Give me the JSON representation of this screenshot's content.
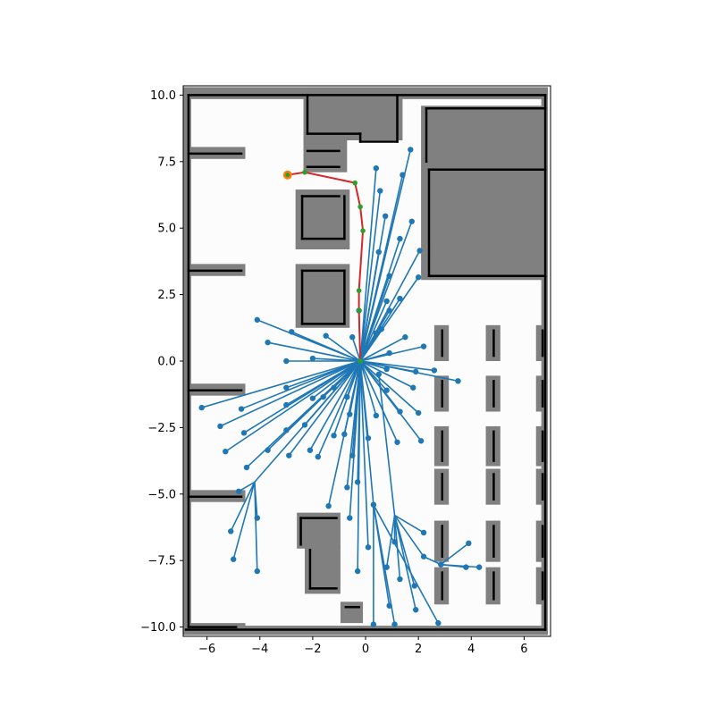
{
  "chart_data": {
    "type": "scatter",
    "title": "",
    "xlabel": "",
    "ylabel": "",
    "xlim": [
      -6.9,
      7.0
    ],
    "ylim": [
      -10.35,
      10.35
    ],
    "grid": false,
    "x_ticks": [
      -6,
      -4,
      -2,
      0,
      2,
      4,
      6
    ],
    "y_ticks": [
      -10.0,
      -7.5,
      -5.0,
      -2.5,
      0.0,
      2.5,
      5.0,
      7.5,
      10.0
    ],
    "x_tick_labels": [
      "−6",
      "−4",
      "−2",
      "0",
      "2",
      "4",
      "6"
    ],
    "y_tick_labels": [
      "−10.0",
      "−7.5",
      "−5.0",
      "−2.5",
      "0.0",
      "2.5",
      "5.0",
      "7.5",
      "10.0"
    ],
    "colors": {
      "tree": "#1f77b4",
      "path": "#d62728",
      "path_nodes": "#2ca02c",
      "start": "#ff7f0e",
      "occupied": "#000000",
      "inflated": "#808080",
      "free": "#fcfcfc"
    },
    "map": {
      "inflated_obstacles": [
        [
          -6.9,
          -6.6,
          -10.3,
          10.3
        ],
        [
          -6.9,
          6.9,
          9.85,
          10.3
        ],
        [
          -6.9,
          6.9,
          -10.3,
          -9.95
        ],
        [
          6.65,
          6.9,
          -10.3,
          10.3
        ],
        [
          -6.9,
          -4.55,
          7.6,
          8.05
        ],
        [
          -6.9,
          -4.55,
          3.2,
          3.65
        ],
        [
          -6.9,
          -4.55,
          -1.3,
          -0.85
        ],
        [
          -6.9,
          -4.55,
          -5.3,
          -4.85
        ],
        [
          -6.9,
          -4.55,
          -10.3,
          -9.85
        ],
        [
          -2.35,
          1.4,
          8.3,
          10.3
        ],
        [
          -2.35,
          -0.7,
          7.1,
          8.45
        ],
        [
          -2.65,
          -0.6,
          4.2,
          6.45
        ],
        [
          -2.65,
          -0.6,
          1.25,
          3.65
        ],
        [
          2.1,
          6.9,
          3.05,
          9.6
        ],
        [
          -2.6,
          -0.95,
          -7.05,
          -5.7
        ],
        [
          -2.3,
          -0.95,
          -8.75,
          -6.9
        ],
        [
          -0.95,
          -0.1,
          -9.85,
          -9.05
        ],
        [
          2.6,
          3.15,
          0.0,
          1.35
        ],
        [
          2.6,
          3.15,
          -1.9,
          -0.55
        ],
        [
          2.6,
          3.15,
          -3.95,
          -2.45
        ],
        [
          2.6,
          3.15,
          -5.4,
          -4.05
        ],
        [
          2.6,
          3.15,
          -7.55,
          -6.0
        ],
        [
          2.6,
          3.15,
          -9.15,
          -7.75
        ],
        [
          4.55,
          5.1,
          0.0,
          1.35
        ],
        [
          4.55,
          5.1,
          -1.9,
          -0.55
        ],
        [
          4.55,
          5.1,
          -3.95,
          -2.45
        ],
        [
          4.55,
          5.1,
          -5.4,
          -4.05
        ],
        [
          4.55,
          5.1,
          -7.55,
          -6.0
        ],
        [
          4.55,
          5.1,
          -9.15,
          -7.75
        ],
        [
          6.45,
          6.9,
          0.0,
          1.35
        ],
        [
          6.45,
          6.9,
          -1.9,
          -0.55
        ],
        [
          6.45,
          6.9,
          -3.95,
          -2.45
        ],
        [
          6.45,
          6.9,
          -5.4,
          -4.05
        ],
        [
          6.45,
          6.9,
          -7.55,
          -6.0
        ],
        [
          6.45,
          6.9,
          -9.15,
          -7.75
        ]
      ],
      "occupied_lines": [
        [
          -6.7,
          10.0,
          -6.7,
          -9.95
        ],
        [
          -6.7,
          10.0,
          6.8,
          10.0
        ],
        [
          6.8,
          10.0,
          6.8,
          -10.1
        ],
        [
          -6.8,
          -10.1,
          6.8,
          -10.1
        ],
        [
          -6.7,
          7.8,
          -4.7,
          7.8
        ],
        [
          -6.7,
          3.4,
          -4.7,
          3.4
        ],
        [
          -6.7,
          -1.1,
          -4.7,
          -1.1
        ],
        [
          -6.7,
          -5.1,
          -4.7,
          -5.1
        ],
        [
          -6.7,
          -10.0,
          -4.9,
          -10.0
        ],
        [
          -2.2,
          10.0,
          -2.2,
          8.55
        ],
        [
          -2.2,
          8.55,
          -0.2,
          8.55
        ],
        [
          -0.2,
          8.55,
          -0.2,
          8.25
        ],
        [
          -0.2,
          8.25,
          1.2,
          8.25
        ],
        [
          1.2,
          8.25,
          1.2,
          10.0
        ],
        [
          -2.2,
          7.9,
          -1.0,
          7.9
        ],
        [
          -2.2,
          7.3,
          -1.0,
          7.3
        ],
        [
          -2.4,
          6.2,
          -1.0,
          6.2
        ],
        [
          -2.4,
          6.2,
          -2.4,
          4.6
        ],
        [
          -2.4,
          4.6,
          -0.8,
          4.6
        ],
        [
          -0.8,
          4.6,
          -0.8,
          6.2
        ],
        [
          -2.4,
          3.4,
          -0.8,
          3.4
        ],
        [
          -2.4,
          3.4,
          -2.4,
          1.4
        ],
        [
          -2.4,
          1.4,
          -0.8,
          1.4
        ],
        [
          -0.8,
          1.4,
          -0.8,
          3.4
        ],
        [
          2.3,
          9.5,
          6.8,
          9.5
        ],
        [
          2.3,
          9.5,
          2.3,
          7.5
        ],
        [
          2.4,
          7.2,
          2.4,
          3.2
        ],
        [
          2.4,
          3.2,
          6.8,
          3.2
        ],
        [
          2.4,
          7.2,
          6.8,
          7.2
        ],
        [
          -2.45,
          -5.9,
          -1.1,
          -5.9
        ],
        [
          -2.45,
          -5.9,
          -2.45,
          -6.9
        ],
        [
          -2.1,
          -7.1,
          -2.1,
          -8.55
        ],
        [
          -2.1,
          -8.55,
          -1.1,
          -8.55
        ],
        [
          -0.75,
          -9.25,
          -0.25,
          -9.25
        ],
        [
          2.9,
          1.15,
          2.9,
          0.2
        ],
        [
          2.9,
          -0.75,
          2.9,
          -1.7
        ],
        [
          2.9,
          -2.65,
          2.9,
          -3.75
        ],
        [
          2.9,
          -4.25,
          2.9,
          -5.2
        ],
        [
          2.9,
          -6.2,
          2.9,
          -7.35
        ],
        [
          2.9,
          -7.95,
          2.9,
          -8.95
        ],
        [
          4.85,
          1.15,
          4.85,
          0.2
        ],
        [
          4.85,
          -0.75,
          4.85,
          -1.7
        ],
        [
          4.85,
          -2.65,
          4.85,
          -3.75
        ],
        [
          4.85,
          -4.25,
          4.85,
          -5.2
        ],
        [
          4.85,
          -6.2,
          4.85,
          -7.35
        ],
        [
          4.85,
          -7.95,
          4.85,
          -8.95
        ],
        [
          6.7,
          1.15,
          6.7,
          0.2
        ],
        [
          6.7,
          -0.75,
          6.7,
          -1.7
        ],
        [
          6.7,
          -2.65,
          6.7,
          -3.75
        ],
        [
          6.7,
          -4.25,
          6.7,
          -5.2
        ],
        [
          6.7,
          -6.2,
          6.7,
          -7.35
        ],
        [
          6.7,
          -7.95,
          6.7,
          -8.95
        ]
      ]
    },
    "tree_root": [
      -0.2,
      0.0
    ],
    "tree_edges": [
      [
        -0.2,
        0.0,
        -4.1,
        1.55
      ],
      [
        -0.2,
        0.0,
        -3.7,
        0.7
      ],
      [
        -0.2,
        0.0,
        -2.8,
        1.1
      ],
      [
        -0.2,
        0.0,
        -1.5,
        0.95
      ],
      [
        -0.2,
        0.0,
        -0.5,
        0.9
      ],
      [
        -0.2,
        0.0,
        -3.0,
        0.0
      ],
      [
        -0.2,
        0.0,
        -2.0,
        0.1
      ],
      [
        -0.2,
        0.0,
        -3.0,
        -1.0
      ],
      [
        -0.2,
        0.0,
        -6.2,
        -1.75
      ],
      [
        -0.2,
        0.0,
        -5.5,
        -2.45
      ],
      [
        -0.2,
        0.0,
        -4.7,
        -1.8
      ],
      [
        -0.2,
        0.0,
        -4.6,
        -2.7
      ],
      [
        -0.2,
        0.0,
        -5.3,
        -3.4
      ],
      [
        -0.2,
        0.0,
        -3.7,
        -3.35
      ],
      [
        -0.2,
        0.0,
        -4.5,
        -4.0
      ],
      [
        -0.2,
        0.0,
        -3.0,
        -1.65
      ],
      [
        -0.2,
        0.0,
        -3.0,
        -2.6
      ],
      [
        -0.2,
        0.0,
        -2.9,
        -3.55
      ],
      [
        -0.2,
        0.0,
        -2.0,
        -1.4
      ],
      [
        -0.2,
        0.0,
        -2.3,
        -2.4
      ],
      [
        -0.2,
        0.0,
        -2.1,
        -3.35
      ],
      [
        -0.2,
        0.0,
        -1.8,
        -3.6
      ],
      [
        -0.2,
        0.0,
        -1.2,
        -2.8
      ],
      [
        -0.2,
        0.0,
        -1.6,
        -1.35
      ],
      [
        -0.2,
        0.0,
        -1.2,
        -1.0
      ],
      [
        -0.2,
        0.0,
        -0.7,
        -1.35
      ],
      [
        -0.2,
        0.0,
        -0.6,
        -2.0
      ],
      [
        -0.2,
        0.0,
        -0.8,
        -2.75
      ],
      [
        -0.2,
        0.0,
        -0.5,
        -3.55
      ],
      [
        -0.2,
        0.0,
        -0.7,
        -4.75
      ],
      [
        -0.2,
        0.0,
        -0.3,
        -4.55
      ],
      [
        -0.2,
        0.0,
        -1.4,
        -5.45
      ],
      [
        -0.2,
        0.0,
        -0.6,
        -5.9
      ],
      [
        -0.2,
        0.0,
        -0.3,
        -7.9
      ],
      [
        -0.2,
        0.0,
        0.1,
        -2.9
      ],
      [
        -0.2,
        0.0,
        0.1,
        -7.0
      ],
      [
        -0.2,
        0.0,
        0.3,
        -5.4
      ],
      [
        -0.2,
        0.0,
        0.4,
        -2.05
      ],
      [
        -0.2,
        0.0,
        0.8,
        -1.1
      ],
      [
        -0.2,
        0.0,
        1.2,
        -3.05
      ],
      [
        -0.2,
        0.0,
        1.3,
        -1.9
      ],
      [
        -0.2,
        0.0,
        2.0,
        -1.95
      ],
      [
        -0.2,
        0.0,
        1.8,
        -1.0
      ],
      [
        -0.2,
        0.0,
        2.1,
        -3.0
      ],
      [
        -0.2,
        0.0,
        0.8,
        -0.3
      ],
      [
        -0.2,
        0.0,
        1.9,
        -0.4
      ],
      [
        -0.2,
        0.0,
        2.6,
        -0.35
      ],
      [
        -0.2,
        0.0,
        3.5,
        -0.75
      ],
      [
        -0.2,
        0.0,
        2.2,
        0.55
      ],
      [
        -0.2,
        0.0,
        0.9,
        0.3
      ],
      [
        -0.2,
        0.0,
        1.5,
        0.9
      ],
      [
        -0.2,
        0.0,
        0.6,
        1.2
      ],
      [
        -0.2,
        0.0,
        0.4,
        1.05
      ],
      [
        -0.2,
        0.0,
        0.9,
        1.9
      ],
      [
        -0.2,
        0.0,
        0.8,
        2.25
      ],
      [
        -0.2,
        0.0,
        1.3,
        2.35
      ],
      [
        -0.2,
        0.0,
        2.0,
        3.15
      ],
      [
        -0.2,
        0.0,
        2.05,
        4.15
      ],
      [
        -0.2,
        0.0,
        0.9,
        3.2
      ],
      [
        -0.2,
        0.0,
        0.5,
        4.1
      ],
      [
        -0.2,
        0.0,
        0.75,
        5.45
      ],
      [
        -0.2,
        0.0,
        1.3,
        4.6
      ],
      [
        -0.2,
        0.0,
        1.75,
        5.25
      ],
      [
        -0.2,
        0.0,
        0.55,
        6.4
      ],
      [
        -0.2,
        0.0,
        0.4,
        7.25
      ],
      [
        -0.2,
        0.0,
        1.4,
        7.0
      ],
      [
        -0.2,
        0.0,
        1.7,
        7.95
      ],
      [
        -0.2,
        0.0,
        -0.25,
        1.9
      ],
      [
        -4.2,
        -4.55,
        -4.1,
        -5.9
      ],
      [
        -4.2,
        -4.55,
        -4.8,
        -4.9
      ],
      [
        -4.2,
        -4.55,
        -5.1,
        -6.4
      ],
      [
        -4.2,
        -4.55,
        -5.0,
        -7.45
      ],
      [
        -4.2,
        -4.55,
        -4.1,
        -7.9
      ],
      [
        -4.2,
        -4.55,
        -0.2,
        0.0
      ],
      [
        1.1,
        -5.8,
        1.1,
        -6.8
      ],
      [
        1.1,
        -5.8,
        0.8,
        -7.75
      ],
      [
        1.1,
        -5.8,
        1.3,
        -8.2
      ],
      [
        1.1,
        -5.8,
        1.85,
        -8.45
      ],
      [
        1.1,
        -5.8,
        1.9,
        -9.35
      ],
      [
        1.1,
        -5.8,
        2.2,
        -7.35
      ],
      [
        1.1,
        -5.8,
        2.2,
        -6.45
      ],
      [
        1.1,
        -5.8,
        0.5,
        -0.5
      ],
      [
        2.2,
        -7.35,
        2.85,
        -7.65
      ],
      [
        2.85,
        -7.65,
        3.9,
        -6.85
      ],
      [
        2.85,
        -7.65,
        3.8,
        -7.75
      ],
      [
        2.85,
        -7.65,
        4.3,
        -7.75
      ],
      [
        0.3,
        -5.4,
        0.3,
        -9.9
      ],
      [
        0.3,
        -5.4,
        0.9,
        -9.2
      ],
      [
        0.3,
        -5.4,
        1.1,
        -9.9
      ],
      [
        0.3,
        -5.4,
        2.75,
        -9.85
      ]
    ],
    "path_nodes": [
      [
        -2.95,
        7.0
      ],
      [
        -2.3,
        7.1
      ],
      [
        -0.4,
        6.7
      ],
      [
        -0.2,
        5.8
      ],
      [
        -0.1,
        4.9
      ],
      [
        -0.25,
        2.65
      ],
      [
        -0.25,
        1.9
      ],
      [
        -0.2,
        0.0
      ]
    ],
    "start": [
      -2.95,
      7.0
    ]
  }
}
